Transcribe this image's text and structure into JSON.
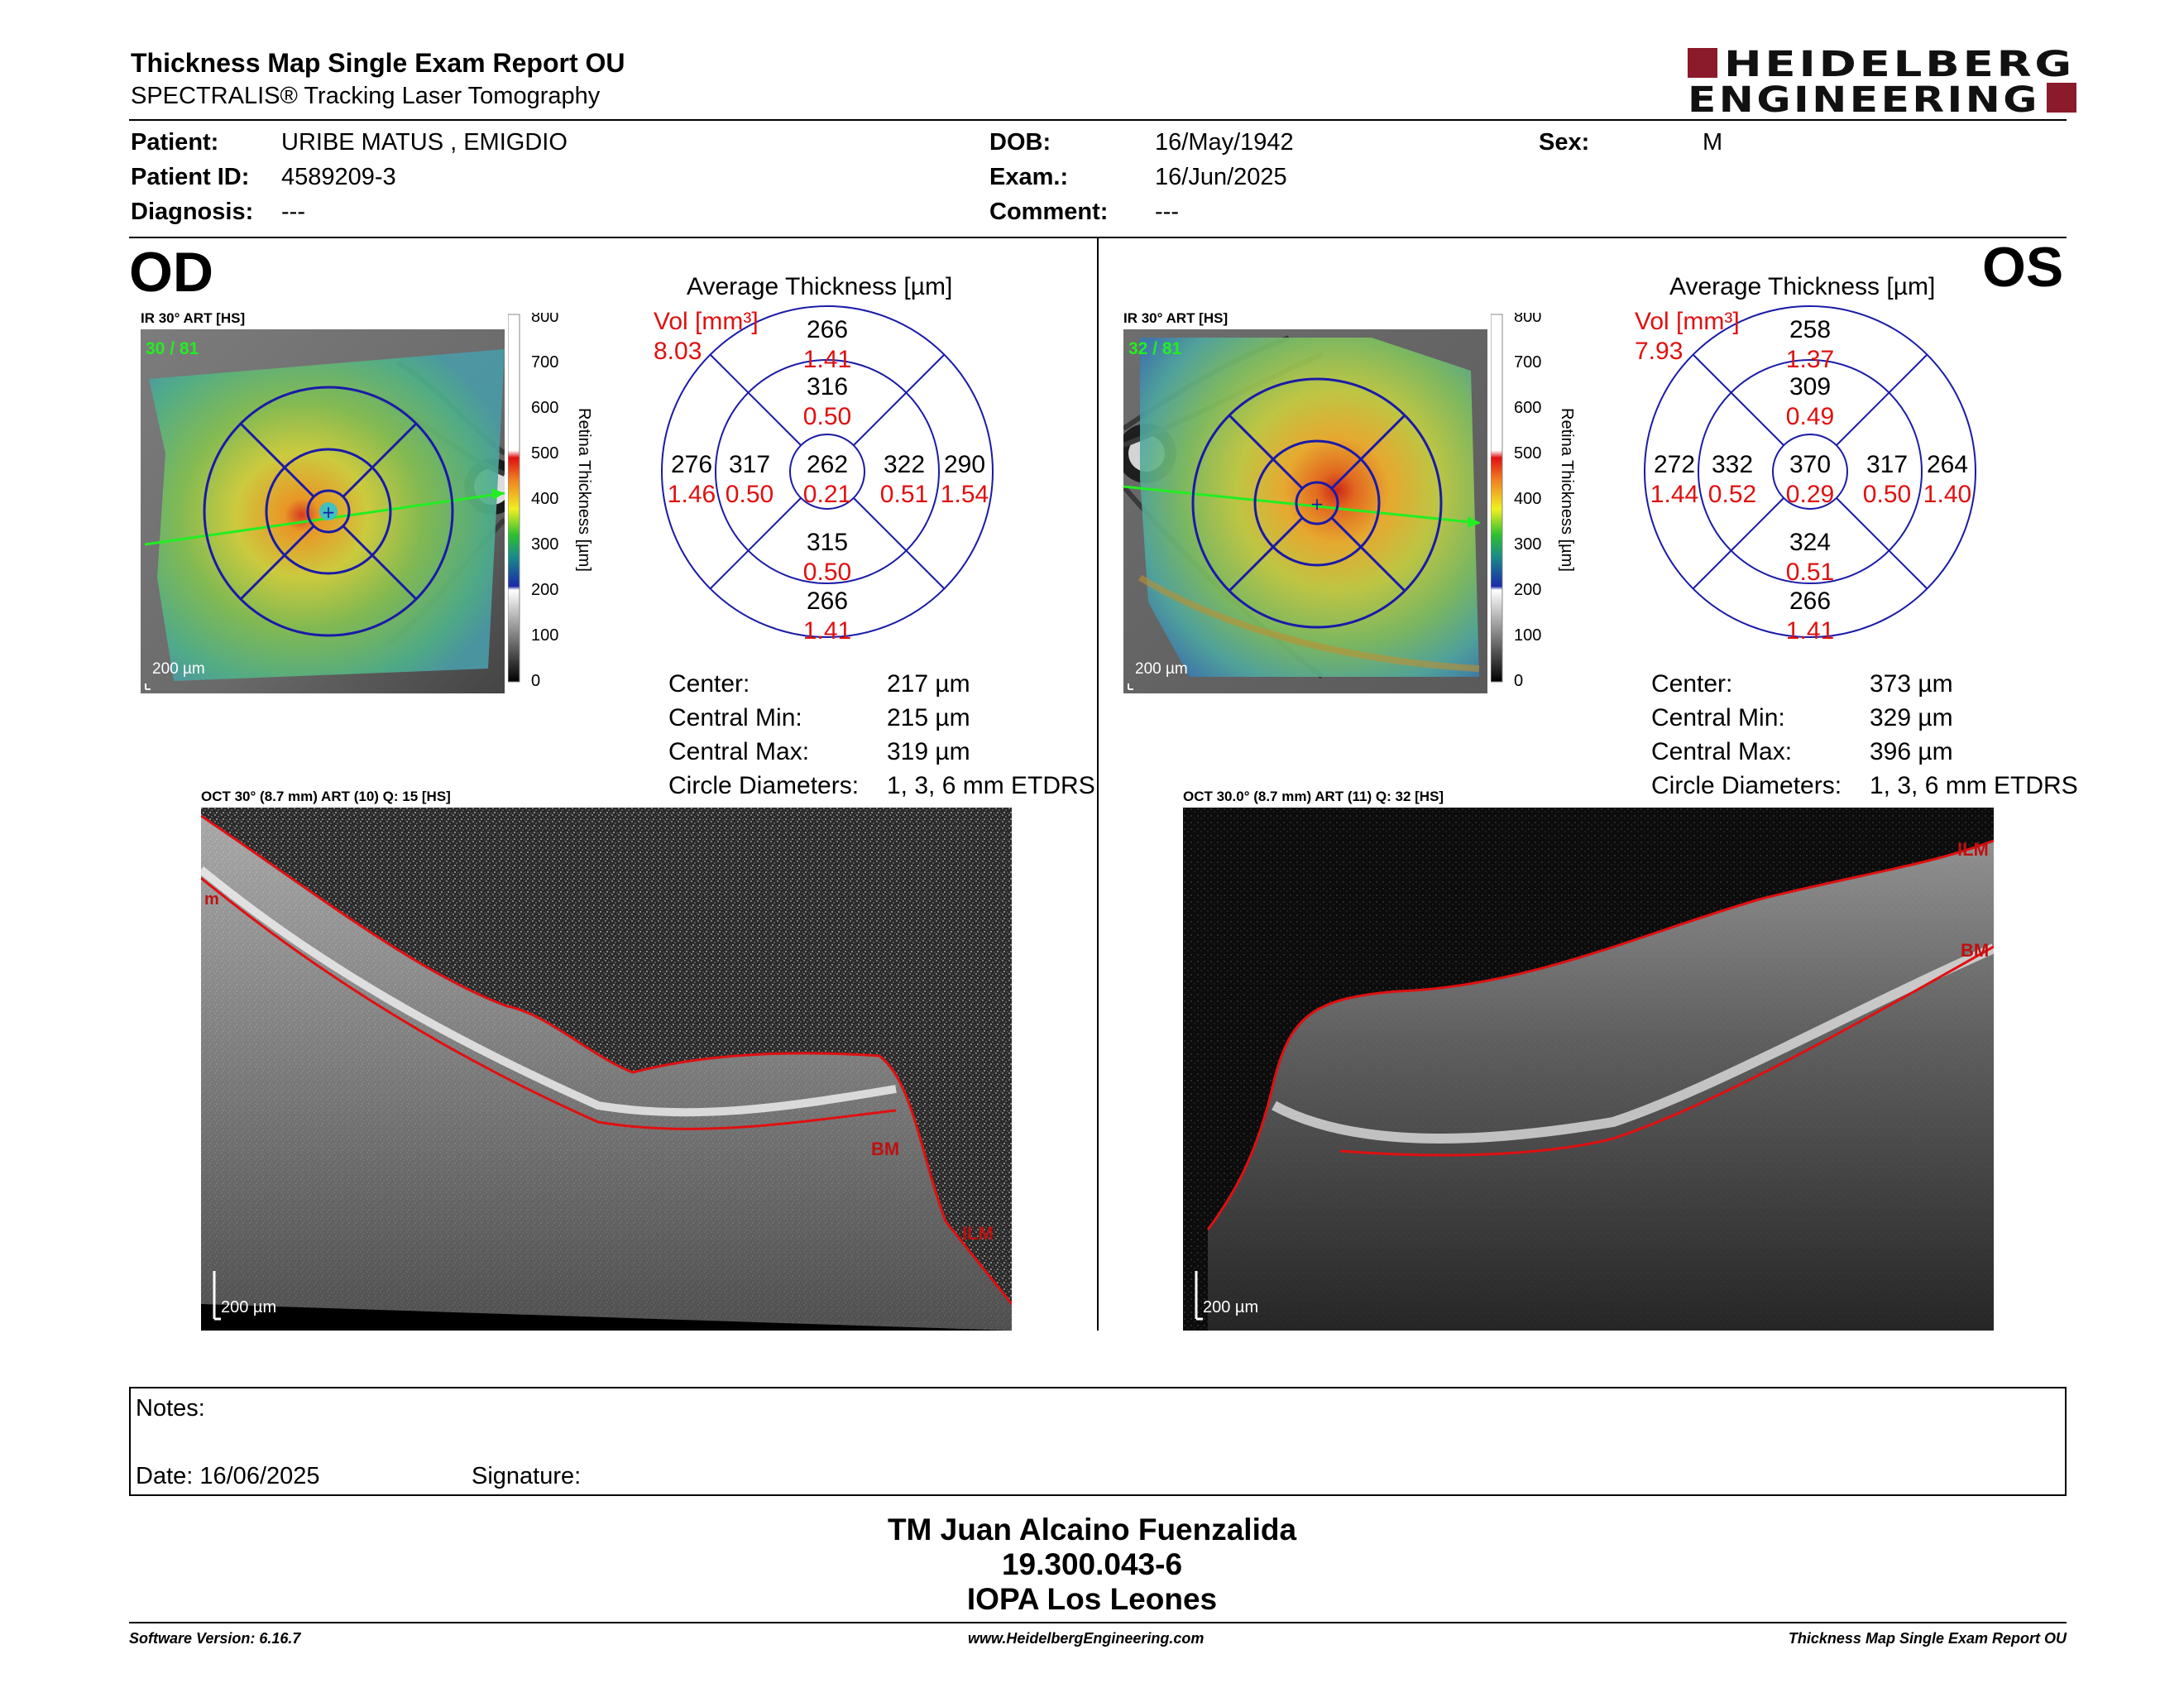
{
  "header": {
    "title": "Thickness Map Single Exam Report OU",
    "subtitle": "SPECTRALIS® Tracking Laser Tomography",
    "logo_line1": "HEIDELBERG",
    "logo_line2": "ENGINEERING"
  },
  "patient": {
    "patient_label": "Patient:",
    "patient_value": "URIBE MATUS , EMIGDIO",
    "id_label": "Patient ID:",
    "id_value": "4589209-3",
    "diagnosis_label": "Diagnosis:",
    "diagnosis_value": "---",
    "dob_label": "DOB:",
    "dob_value": "16/May/1942",
    "exam_label": "Exam.:",
    "exam_value": "16/Jun/2025",
    "comment_label": "Comment:",
    "comment_value": "---",
    "sex_label": "Sex:",
    "sex_value": "M"
  },
  "colorbar": {
    "ticks": [
      "800",
      "700",
      "600",
      "500",
      "400",
      "300",
      "200",
      "100",
      "0"
    ],
    "title": "Retina Thickness [µm]"
  },
  "od": {
    "eye": "OD",
    "ir_label": "IR 30° ART [HS]",
    "ir_overlay": "30 / 81",
    "ir_scale": "200 µm",
    "avg_title": "Average Thickness [µm]",
    "vol_label": "Vol [mm³]",
    "vol_value": "8.03",
    "sectors": {
      "outer_top": {
        "t": "266",
        "v": "1.41"
      },
      "inner_top": {
        "t": "316",
        "v": "0.50"
      },
      "outer_left": {
        "t": "276",
        "v": "1.46"
      },
      "inner_left": {
        "t": "317",
        "v": "0.50"
      },
      "center": {
        "t": "262",
        "v": "0.21"
      },
      "inner_right": {
        "t": "322",
        "v": "0.51"
      },
      "outer_right": {
        "t": "290",
        "v": "1.54"
      },
      "inner_bottom": {
        "t": "315",
        "v": "0.50"
      },
      "outer_bottom": {
        "t": "266",
        "v": "1.41"
      }
    },
    "stats": [
      {
        "label": "Center:",
        "value": "217 µm"
      },
      {
        "label": "Central Min:",
        "value": "215 µm"
      },
      {
        "label": "Central Max:",
        "value": "319 µm"
      },
      {
        "label": "Circle Diameters:",
        "value": "1, 3, 6 mm ETDRS"
      }
    ],
    "oct_label": "OCT 30° (8.7 mm) ART (10) Q: 15 [HS]",
    "oct_scale": "200 µm",
    "oct_ilm": "ILM",
    "oct_bm": "BM",
    "oct_edge": "m"
  },
  "os": {
    "eye": "OS",
    "ir_label": "IR 30° ART [HS]",
    "ir_overlay": "32 / 81",
    "ir_scale": "200 µm",
    "avg_title": "Average Thickness [µm]",
    "vol_label": "Vol [mm³]",
    "vol_value": "7.93",
    "sectors": {
      "outer_top": {
        "t": "258",
        "v": "1.37"
      },
      "inner_top": {
        "t": "309",
        "v": "0.49"
      },
      "outer_left": {
        "t": "272",
        "v": "1.44"
      },
      "inner_left": {
        "t": "332",
        "v": "0.52"
      },
      "center": {
        "t": "370",
        "v": "0.29"
      },
      "inner_right": {
        "t": "317",
        "v": "0.50"
      },
      "outer_right": {
        "t": "264",
        "v": "1.40"
      },
      "inner_bottom": {
        "t": "324",
        "v": "0.51"
      },
      "outer_bottom": {
        "t": "266",
        "v": "1.41"
      }
    },
    "stats": [
      {
        "label": "Center:",
        "value": "373 µm"
      },
      {
        "label": "Central Min:",
        "value": "329 µm"
      },
      {
        "label": "Central Max:",
        "value": "396 µm"
      },
      {
        "label": "Circle Diameters:",
        "value": "1, 3, 6 mm ETDRS"
      }
    ],
    "oct_label": "OCT 30.0° (8.7 mm) ART (11) Q: 32 [HS]",
    "oct_scale": "200 µm",
    "oct_ilm": "ILM",
    "oct_bm": "BM"
  },
  "notes": {
    "notes_label": "Notes:",
    "date_label": "Date: 16/06/2025",
    "signature_label": "Signature:"
  },
  "signer": {
    "name": "TM Juan Alcaino Fuenzalida",
    "id": "19.300.043-6",
    "org": "IOPA Los Leones"
  },
  "footer": {
    "version": "Software Version: 6.16.7",
    "url": "www.HeidelbergEngineering.com",
    "report": "Thickness Map Single Exam Report OU"
  },
  "colors": {
    "grid_blue": "#1a1aa8",
    "value_red": "#e01010",
    "brand_red": "#8b1a2b",
    "scan_line_green": "#22ee22"
  }
}
